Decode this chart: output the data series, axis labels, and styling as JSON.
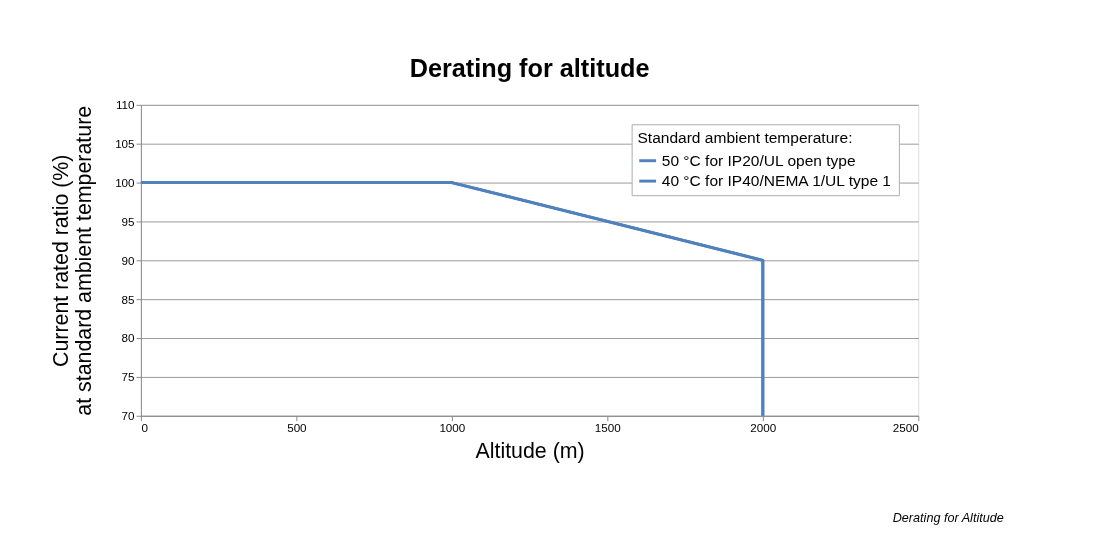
{
  "chart_data": {
    "type": "line",
    "title": "Derating for altitude",
    "xlabel": "Altitude (m)",
    "ylabel": "Current rated ratio (%)\nat standard ambient temperature",
    "legend_title": "Standard ambient temperature:",
    "x": [
      0,
      1000,
      2000,
      2000
    ],
    "series": [
      {
        "name": "50 °C for IP20/UL open type",
        "color": "#4f81bd",
        "values": [
          100,
          100,
          90,
          70
        ]
      },
      {
        "name": "40 °C for IP40/NEMA 1/UL type 1",
        "color": "#4f81bd",
        "values": [
          100,
          100,
          90,
          70
        ]
      }
    ],
    "xlim": [
      0,
      2500
    ],
    "xticks": [
      0,
      500,
      1000,
      1500,
      2000,
      2500
    ],
    "ylim": [
      70,
      110
    ],
    "yticks": [
      70,
      75,
      80,
      85,
      90,
      95,
      100,
      105,
      110
    ],
    "grid": "y",
    "legend": "top right",
    "marker": "none",
    "line_style": "solid",
    "annotations": [
      "Derating for Altitude"
    ]
  }
}
